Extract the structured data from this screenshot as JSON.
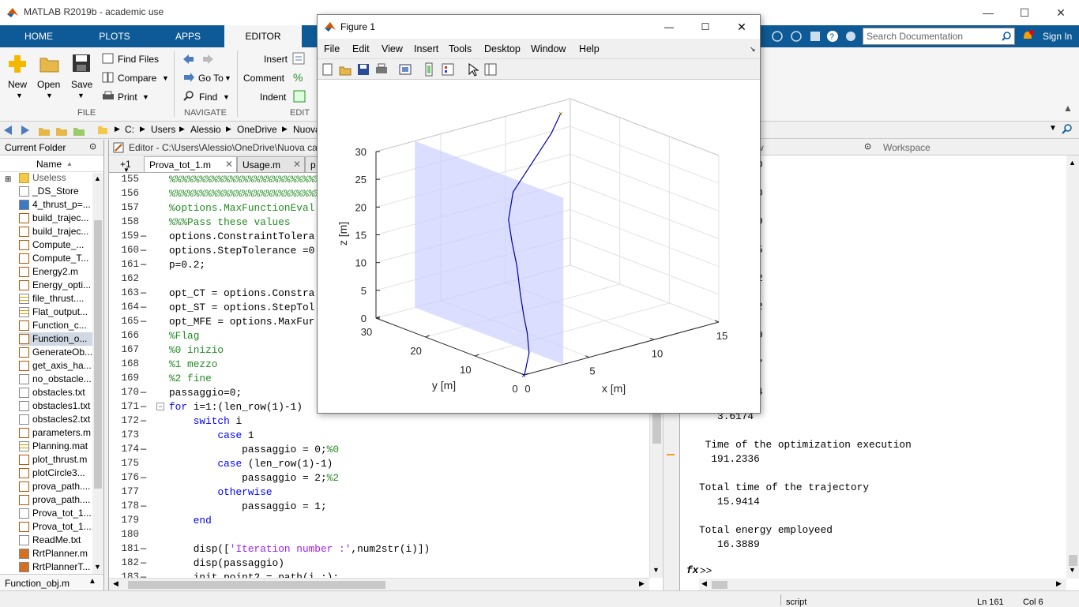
{
  "app": {
    "title": "MATLAB R2019b - academic use",
    "min": "—",
    "max": "☐",
    "close": "✕"
  },
  "ribbon_tabs": [
    {
      "label": "HOME"
    },
    {
      "label": "PLOTS"
    },
    {
      "label": "APPS"
    },
    {
      "label": "EDITOR"
    }
  ],
  "search": {
    "placeholder": "Search Documentation"
  },
  "signin": "Sign In",
  "ribbon": {
    "file": {
      "new": "New",
      "open": "Open",
      "save": "Save",
      "find_files": "Find Files",
      "compare": "Compare",
      "print": "Print",
      "group": "FILE"
    },
    "navigate": {
      "goto": "Go To",
      "find": "Find",
      "group": "NAVIGATE"
    },
    "edit": {
      "insert": "Insert",
      "comment": "Comment",
      "indent": "Indent",
      "group": "EDIT"
    }
  },
  "path": [
    "C:",
    "Users",
    "Alessio",
    "OneDrive",
    "Nuova"
  ],
  "current_folder": {
    "title": "Current Folder",
    "col": "Name",
    "sort": "▲",
    "selected": "Function_obj.m",
    "items": [
      {
        "name": "Useless",
        "t": "folder"
      },
      {
        "name": "_DS_Store",
        "t": "file"
      },
      {
        "name": "4_thrust_p=...",
        "t": "fig"
      },
      {
        "name": "build_trajec...",
        "t": "m"
      },
      {
        "name": "build_trajec...",
        "t": "m"
      },
      {
        "name": "Compute_...",
        "t": "m"
      },
      {
        "name": "Compute_T...",
        "t": "m"
      },
      {
        "name": "Energy2.m",
        "t": "m"
      },
      {
        "name": "Energy_opti...",
        "t": "m"
      },
      {
        "name": "file_thrust....",
        "t": "mat"
      },
      {
        "name": "Flat_output...",
        "t": "mat"
      },
      {
        "name": "Function_c...",
        "t": "m"
      },
      {
        "name": "Function_o...",
        "t": "m"
      },
      {
        "name": "GenerateOb...",
        "t": "m"
      },
      {
        "name": "get_axis_ha...",
        "t": "m"
      },
      {
        "name": "no_obstacle...",
        "t": "file"
      },
      {
        "name": "obstacles.txt",
        "t": "file"
      },
      {
        "name": "obstacles1.txt",
        "t": "file"
      },
      {
        "name": "obstacles2.txt",
        "t": "file"
      },
      {
        "name": "parameters.m",
        "t": "m"
      },
      {
        "name": "Planning.mat",
        "t": "mat"
      },
      {
        "name": "plot_thrust.m",
        "t": "m"
      },
      {
        "name": "plotCircle3...",
        "t": "m"
      },
      {
        "name": "prova_path....",
        "t": "m"
      },
      {
        "name": "prova_path....",
        "t": "m"
      },
      {
        "name": "Prova_tot_1....",
        "t": "file"
      },
      {
        "name": "Prova_tot_1....",
        "t": "m"
      },
      {
        "name": "ReadMe.txt",
        "t": "file"
      },
      {
        "name": "RrtPlanner.m",
        "t": "cls"
      },
      {
        "name": "RrtPlannerT...",
        "t": "cls"
      }
    ]
  },
  "editor": {
    "title": "Editor - C:\\Users\\Alessio\\OneDrive\\Nuova ca",
    "tabs": [
      "+1",
      "Prova_tot_1.m",
      "Usage.m",
      "p"
    ],
    "lines": [
      {
        "n": "155",
        "d": "",
        "code": [
          {
            "t": "%%%%%%%%%%%%%%%%%%%%%%%%%%",
            "c": "c"
          }
        ]
      },
      {
        "n": "156",
        "d": "",
        "code": [
          {
            "t": "%%%%%%%%%%%%%%%%%%%%%%%%%%",
            "c": "c"
          }
        ]
      },
      {
        "n": "157",
        "d": "",
        "code": [
          {
            "t": "%options.MaxFunctionEval",
            "c": "c"
          }
        ]
      },
      {
        "n": "158",
        "d": "",
        "code": [
          {
            "t": "%%%Pass these values",
            "c": "c"
          }
        ]
      },
      {
        "n": "159",
        "d": "—",
        "code": [
          {
            "t": "options.ConstraintTolera",
            "c": ""
          }
        ]
      },
      {
        "n": "160",
        "d": "—",
        "code": [
          {
            "t": "options.StepTolerance =0",
            "c": ""
          }
        ]
      },
      {
        "n": "161",
        "d": "—",
        "code": [
          {
            "t": "p=0.2;",
            "c": ""
          }
        ]
      },
      {
        "n": "162",
        "d": "",
        "code": []
      },
      {
        "n": "163",
        "d": "—",
        "code": [
          {
            "t": "opt_CT = options.Constra",
            "c": ""
          }
        ]
      },
      {
        "n": "164",
        "d": "—",
        "code": [
          {
            "t": "opt_ST = options.StepTol",
            "c": ""
          }
        ]
      },
      {
        "n": "165",
        "d": "—",
        "code": [
          {
            "t": "opt_MFE = options.MaxFur",
            "c": ""
          }
        ]
      },
      {
        "n": "166",
        "d": "",
        "code": [
          {
            "t": "%Flag",
            "c": "c"
          }
        ]
      },
      {
        "n": "167",
        "d": "",
        "code": [
          {
            "t": "%0 inizio",
            "c": "c"
          }
        ]
      },
      {
        "n": "168",
        "d": "",
        "code": [
          {
            "t": "%1 mezzo",
            "c": "c"
          }
        ]
      },
      {
        "n": "169",
        "d": "",
        "code": [
          {
            "t": "%2 fine",
            "c": "c"
          }
        ]
      },
      {
        "n": "170",
        "d": "—",
        "code": [
          {
            "t": "passaggio=0;",
            "c": ""
          }
        ]
      },
      {
        "n": "171",
        "d": "—",
        "code": [
          {
            "t": "for",
            "c": "k"
          },
          {
            "t": " i=1:(len_row(1)-1)",
            "c": ""
          }
        ]
      },
      {
        "n": "172",
        "d": "—",
        "code": [
          {
            "t": "    ",
            "c": ""
          },
          {
            "t": "switch",
            "c": "k"
          },
          {
            "t": " i",
            "c": ""
          }
        ]
      },
      {
        "n": "173",
        "d": "",
        "code": [
          {
            "t": "        ",
            "c": ""
          },
          {
            "t": "case",
            "c": "k"
          },
          {
            "t": " 1",
            "c": ""
          }
        ]
      },
      {
        "n": "174",
        "d": "—",
        "code": [
          {
            "t": "            passaggio = 0;",
            "c": ""
          },
          {
            "t": "%0",
            "c": "c"
          }
        ]
      },
      {
        "n": "175",
        "d": "",
        "code": [
          {
            "t": "        ",
            "c": ""
          },
          {
            "t": "case",
            "c": "k"
          },
          {
            "t": " (len_row(1)-1)",
            "c": ""
          }
        ]
      },
      {
        "n": "176",
        "d": "—",
        "code": [
          {
            "t": "            passaggio = 2;",
            "c": ""
          },
          {
            "t": "%2",
            "c": "c"
          }
        ]
      },
      {
        "n": "177",
        "d": "",
        "code": [
          {
            "t": "        ",
            "c": ""
          },
          {
            "t": "otherwise",
            "c": "k"
          }
        ]
      },
      {
        "n": "178",
        "d": "—",
        "code": [
          {
            "t": "            passaggio = 1;",
            "c": ""
          }
        ]
      },
      {
        "n": "179",
        "d": "",
        "code": [
          {
            "t": "    ",
            "c": ""
          },
          {
            "t": "end",
            "c": "k"
          }
        ]
      },
      {
        "n": "180",
        "d": "",
        "code": []
      },
      {
        "n": "181",
        "d": "—",
        "code": [
          {
            "t": "    disp([",
            "c": ""
          },
          {
            "t": "'Iteration number :'",
            "c": "s"
          },
          {
            "t": ",num2str(i)])",
            "c": ""
          }
        ]
      },
      {
        "n": "182",
        "d": "—",
        "code": [
          {
            "t": "    disp(passaggio)",
            "c": ""
          }
        ]
      },
      {
        "n": "183",
        "d": "—",
        "code": [
          {
            "t": "    init_point2 = path(i,:);",
            "c": ""
          }
        ]
      }
    ]
  },
  "command": {
    "header_left": "w",
    "header_right": "Workspace",
    "side_digits": [
      "0",
      "0",
      "9",
      "5",
      "2",
      "2",
      "9",
      "7",
      "4"
    ],
    "output": [
      {
        "t": "   3.6174",
        "y": 520
      },
      {
        "t": " Time of the optimization execution",
        "y": 556
      },
      {
        "t": "  191.2336",
        "y": 574
      },
      {
        "t": "Total time of the trajectory",
        "y": 610
      },
      {
        "t": "   15.9414",
        "y": 628
      },
      {
        "t": "Total energy employeed",
        "y": 664
      },
      {
        "t": "   16.3889",
        "y": 682
      }
    ],
    "prompt": ">>",
    "fx": "fx"
  },
  "status": {
    "script": "script",
    "ln": "Ln  161",
    "col": "Col  6"
  },
  "figure": {
    "title": "Figure 1",
    "min": "—",
    "max": "☐",
    "close": "✕",
    "menu": [
      "File",
      "Edit",
      "View",
      "Insert",
      "Tools",
      "Desktop",
      "Window",
      "Help"
    ]
  },
  "chart_data": {
    "type": "line",
    "title": "",
    "xlabel": "x [m]",
    "ylabel": "y [m]",
    "zlabel": "z [m]",
    "xlim": [
      0,
      15
    ],
    "ylim": [
      0,
      30
    ],
    "zlim": [
      0,
      30
    ],
    "xticks": [
      0,
      5,
      10,
      15
    ],
    "yticks": [
      0,
      10,
      20,
      30
    ],
    "zticks": [
      0,
      5,
      10,
      15,
      20,
      25,
      30
    ],
    "grid": "on",
    "series": [
      {
        "color": "#0000aa",
        "x": [
          0,
          1.5,
          2.5,
          3,
          3.5,
          4,
          4,
          4.5,
          6,
          9,
          12,
          13.5
        ],
        "y": [
          0,
          3,
          6,
          8,
          10,
          12,
          13,
          15,
          18,
          22,
          26,
          28
        ],
        "z": [
          0,
          2,
          4,
          6,
          9,
          13,
          17,
          20,
          23,
          25,
          27,
          29
        ]
      }
    ],
    "plane": {
      "color": "#ccd0ff",
      "x": [
        3,
        3,
        3,
        3
      ],
      "y": [
        0,
        30,
        30,
        0
      ],
      "z": [
        0,
        0,
        30,
        30
      ]
    }
  }
}
